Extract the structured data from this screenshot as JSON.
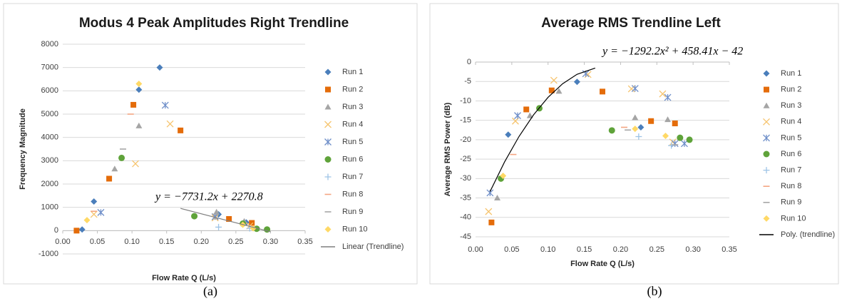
{
  "chart_data": [
    {
      "type": "scatter",
      "title": "Modus 4 Peak Amplitudes Right Trendline",
      "caption": "(a)",
      "x_label": "Flow Rate Q (L/s)",
      "y_label": "Frequency Magnitude",
      "equation": "y = −7731.2x + 2270.8",
      "grid": true,
      "xlim": [
        0,
        0.35
      ],
      "xticks": [
        {
          "value": 0,
          "label": "0.00"
        },
        {
          "value": 0.05,
          "label": "0.05"
        },
        {
          "value": 0.1,
          "label": "0.10"
        },
        {
          "value": 0.15,
          "label": "0.15"
        },
        {
          "value": 0.2,
          "label": "0.20"
        },
        {
          "value": 0.25,
          "label": "0.25"
        },
        {
          "value": 0.3,
          "label": "0.30"
        },
        {
          "value": 0.35,
          "label": "0.35"
        }
      ],
      "ylim": [
        -1000,
        8000
      ],
      "yticks": [
        -1000,
        0,
        1000,
        2000,
        3000,
        4000,
        5000,
        6000,
        7000,
        8000
      ],
      "series": [
        {
          "name": "Run 1",
          "color": "#4a7ebb",
          "marker": "diamond",
          "x": [
            0.14,
            0.11,
            0.045,
            0.028,
            0.225,
            0.265
          ],
          "values": [
            7000,
            6050,
            1250,
            50,
            700,
            350
          ]
        },
        {
          "name": "Run 2",
          "color": "#e46c0a",
          "marker": "square",
          "x": [
            0.02,
            0.067,
            0.102,
            0.17,
            0.24,
            0.273
          ],
          "values": [
            0,
            2230,
            5400,
            4300,
            500,
            330
          ]
        },
        {
          "name": "Run 3",
          "color": "#a5a5a5",
          "marker": "triangle",
          "x": [
            0.075,
            0.11,
            0.222,
            0.262
          ],
          "values": [
            2650,
            4500,
            800,
            400
          ]
        },
        {
          "name": "Run 4",
          "color": "#f6c46e",
          "marker": "x",
          "x": [
            0.045,
            0.105,
            0.155,
            0.22,
            0.27
          ],
          "values": [
            700,
            2870,
            4580,
            550,
            200
          ]
        },
        {
          "name": "Run 5",
          "color": "#6f8fc9",
          "marker": "asterisk",
          "x": [
            0.055,
            0.148,
            0.22
          ],
          "values": [
            780,
            5380,
            600
          ]
        },
        {
          "name": "Run 6",
          "color": "#5fa33a",
          "marker": "circle",
          "x": [
            0.085,
            0.19,
            0.26,
            0.28,
            0.295
          ],
          "values": [
            3120,
            620,
            300,
            80,
            50
          ]
        },
        {
          "name": "Run 7",
          "color": "#9dc3e6",
          "marker": "plus",
          "x": [
            0.225,
            0.27
          ],
          "values": [
            150,
            100
          ]
        },
        {
          "name": "Run 8",
          "color": "#f4a582",
          "marker": "dash",
          "x": [
            0.045,
            0.098
          ],
          "values": [
            830,
            5000
          ]
        },
        {
          "name": "Run 9",
          "color": "#a6a6a6",
          "marker": "dash",
          "x": [
            0.087,
            0.22
          ],
          "values": [
            3500,
            700
          ]
        },
        {
          "name": "Run 10",
          "color": "#ffd966",
          "marker": "diamond",
          "x": [
            0.035,
            0.11,
            0.26,
            0.275
          ],
          "values": [
            450,
            6300,
            250,
            100
          ]
        },
        {
          "name": "Linear (Trendline)",
          "color": "#7f7f7f",
          "type": "line",
          "x": [
            0.17,
            0.3
          ],
          "values": [
            956,
            -49
          ]
        }
      ]
    },
    {
      "type": "scatter",
      "title": "Average RMS Trendline Left",
      "caption": "(b)",
      "x_label": "Flow Rate Q (L/s)",
      "y_label": "Average RMS Power (dB)",
      "equation": "y = −1292.2x² + 458.41x − 42",
      "grid": true,
      "xlim": [
        0,
        0.35
      ],
      "xticks": [
        {
          "value": 0,
          "label": "0.00"
        },
        {
          "value": 0.05,
          "label": "0.05"
        },
        {
          "value": 0.1,
          "label": "0.10"
        },
        {
          "value": 0.15,
          "label": "0.15"
        },
        {
          "value": 0.2,
          "label": "0.20"
        },
        {
          "value": 0.25,
          "label": "0.25"
        },
        {
          "value": 0.3,
          "label": "0.30"
        },
        {
          "value": 0.35,
          "label": "0.35"
        }
      ],
      "ylim": [
        -45,
        0
      ],
      "yticks": [
        -45,
        -40,
        -35,
        -30,
        -25,
        -20,
        -15,
        -10,
        -5,
        0
      ],
      "series": [
        {
          "name": "Run 1",
          "color": "#4a7ebb",
          "marker": "diamond",
          "x": [
            0.045,
            0.14,
            0.228
          ],
          "values": [
            -18.7,
            -5.1,
            -16.8
          ]
        },
        {
          "name": "Run 2",
          "color": "#e46c0a",
          "marker": "square",
          "x": [
            0.022,
            0.07,
            0.105,
            0.175,
            0.242,
            0.275
          ],
          "values": [
            -41.3,
            -12.2,
            -7.3,
            -7.6,
            -15.2,
            -15.8
          ]
        },
        {
          "name": "Run 3",
          "color": "#a5a5a5",
          "marker": "triangle",
          "x": [
            0.03,
            0.075,
            0.115,
            0.22,
            0.265
          ],
          "values": [
            -35,
            -13.8,
            -7.5,
            -14.3,
            -14.8
          ]
        },
        {
          "name": "Run 4",
          "color": "#f6c46e",
          "marker": "x",
          "x": [
            0.018,
            0.055,
            0.108,
            0.155,
            0.215,
            0.258,
            0.272
          ],
          "values": [
            -38.5,
            -15.2,
            -4.7,
            -3.2,
            -6.9,
            -8.2,
            -20.6
          ]
        },
        {
          "name": "Run 5",
          "color": "#6f8fc9",
          "marker": "asterisk",
          "x": [
            0.02,
            0.058,
            0.152,
            0.22,
            0.265,
            0.275,
            0.288
          ],
          "values": [
            -33.7,
            -13.8,
            -3,
            -6.8,
            -9.1,
            -21,
            -21
          ]
        },
        {
          "name": "Run 6",
          "color": "#5fa33a",
          "marker": "circle",
          "x": [
            0.035,
            0.088,
            0.188,
            0.282,
            0.295
          ],
          "values": [
            -30,
            -11.9,
            -17.6,
            -19.5,
            -20
          ]
        },
        {
          "name": "Run 7",
          "color": "#9dc3e6",
          "marker": "plus",
          "x": [
            0.225,
            0.27
          ],
          "values": [
            -19.2,
            -21.5
          ]
        },
        {
          "name": "Run 8",
          "color": "#f4a582",
          "marker": "dash",
          "x": [
            0.052,
            0.205
          ],
          "values": [
            -23.8,
            -16.8
          ]
        },
        {
          "name": "Run 9",
          "color": "#a6a6a6",
          "marker": "dash",
          "x": [
            0.21,
            0.275
          ],
          "values": [
            -17.5,
            -21.3
          ]
        },
        {
          "name": "Run 10",
          "color": "#ffd966",
          "marker": "diamond",
          "x": [
            0.038,
            0.22,
            0.262
          ],
          "values": [
            -29.3,
            -17.2,
            -19
          ]
        },
        {
          "name": "Poly. (trendline)",
          "color": "#000000",
          "type": "line",
          "x": [
            0.02,
            0.04,
            0.06,
            0.08,
            0.1,
            0.12,
            0.14,
            0.165
          ],
          "values": [
            -33.35,
            -25.73,
            -19.15,
            -13.6,
            -9.08,
            -5.6,
            -3.15,
            -1.54
          ]
        }
      ]
    }
  ]
}
